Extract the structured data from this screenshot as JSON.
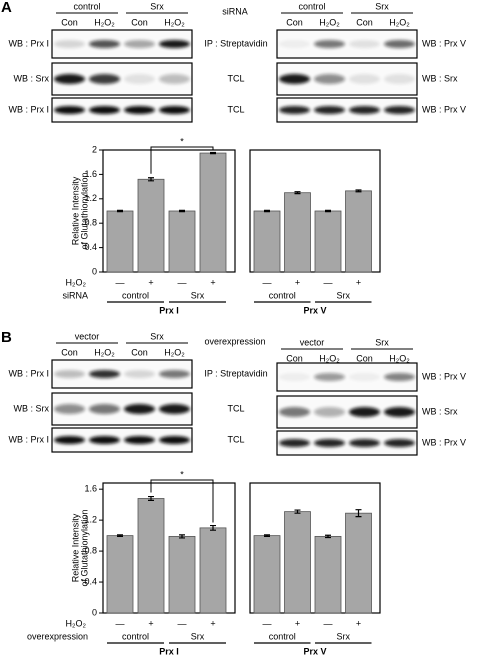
{
  "panels": [
    {
      "label": "A",
      "blots": {
        "left": {
          "groups": [
            "control",
            "Srx"
          ],
          "lanes": [
            "Con",
            "H₂O₂",
            "Con",
            "H₂O₂"
          ],
          "rows": [
            "WB : Prx I",
            "WB : Srx",
            "WB : Prx I"
          ]
        },
        "middle": {
          "label": "siRNA",
          "rows": [
            "IP : Streptavidin",
            "TCL",
            "TCL"
          ]
        },
        "right": {
          "groups": [
            "control",
            "Srx"
          ],
          "lanes": [
            "Con",
            "H₂O₂",
            "Con",
            "H₂O₂"
          ],
          "rows": [
            "WB : Prx V",
            "WB : Srx",
            "WB : Prx V"
          ]
        }
      }
    },
    {
      "label": "B",
      "blots": {
        "left": {
          "groups": [
            "vector",
            "Srx"
          ],
          "lanes": [
            "Con",
            "H₂O₂",
            "Con",
            "H₂O₂"
          ],
          "rows": [
            "WB : Prx I",
            "WB : Srx",
            "WB : Prx I"
          ]
        },
        "middle": {
          "label": "overexpression",
          "rows": [
            "IP : Streptavidin",
            "TCL",
            "TCL"
          ]
        },
        "right": {
          "groups": [
            "vector",
            "Srx"
          ],
          "lanes": [
            "Con",
            "H₂O₂",
            "Con",
            "H₂O₂"
          ],
          "rows": [
            "WB : Prx V",
            "WB : Srx",
            "WB : Prx V"
          ]
        }
      }
    }
  ],
  "chart_data": [
    {
      "type": "bar",
      "ylabel": [
        "Relative Intensity",
        "of Glutathionylation"
      ],
      "ylim": [
        0,
        2
      ],
      "yticks": [
        0,
        0.4,
        0.8,
        1.2,
        1.6,
        2
      ],
      "color": "#a6a6a6",
      "treatment_label": "H₂O₂",
      "categories": [
        "—",
        "+",
        "—",
        "+"
      ],
      "factor_label": "siRNA",
      "factor_levels": [
        "control",
        "Srx"
      ],
      "significance": "*",
      "groups": [
        {
          "name": "Prx I",
          "values": [
            1.0,
            1.52,
            1.0,
            1.95
          ],
          "errors": [
            0.01,
            0.025,
            0.01,
            0.01
          ]
        },
        {
          "name": "Prx V",
          "values": [
            1.0,
            1.3,
            1.0,
            1.33
          ],
          "errors": [
            0.01,
            0.015,
            0.01,
            0.015
          ]
        }
      ]
    },
    {
      "type": "bar",
      "ylabel": [
        "Relative Intensity",
        "of Glutathionylation"
      ],
      "ylim": [
        0,
        1.68
      ],
      "yticks": [
        0,
        0.4,
        0.8,
        1.2,
        1.6
      ],
      "color": "#a6a6a6",
      "treatment_label": "H₂O₂",
      "categories": [
        "—",
        "+",
        "—",
        "+"
      ],
      "factor_label": "overexpression",
      "factor_levels": [
        "control",
        "Srx"
      ],
      "significance": "*",
      "groups": [
        {
          "name": "Prx I",
          "values": [
            1.0,
            1.48,
            0.99,
            1.1
          ],
          "errors": [
            0.01,
            0.025,
            0.02,
            0.03
          ]
        },
        {
          "name": "Prx V",
          "values": [
            1.0,
            1.31,
            0.99,
            1.29
          ],
          "errors": [
            0.01,
            0.02,
            0.015,
            0.045
          ]
        }
      ]
    }
  ]
}
